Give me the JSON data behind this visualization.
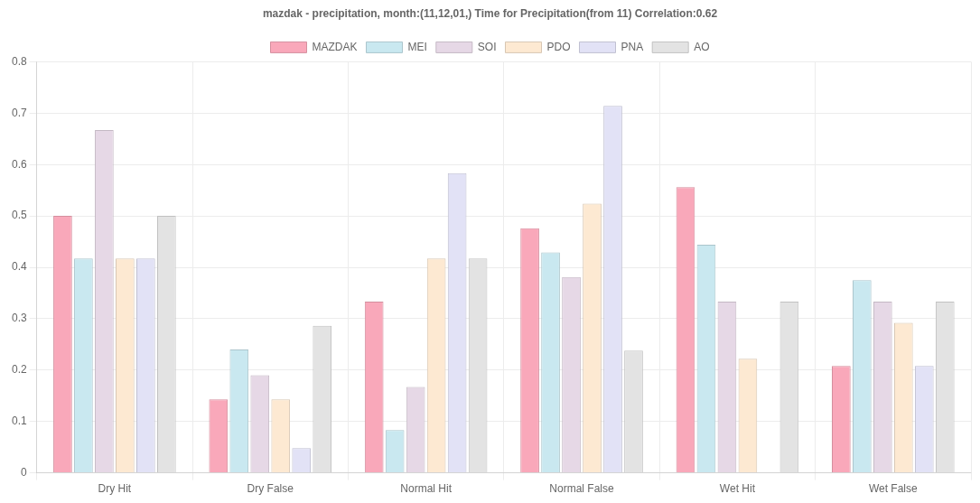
{
  "chart_data": {
    "type": "bar",
    "title": "mazdak - precipitation, month:(11,12,01,) Time for Precipitation(from 11) Correlation:0.62",
    "categories": [
      "Dry Hit",
      "Dry False",
      "Normal Hit",
      "Normal False",
      "Wet Hit",
      "Wet False"
    ],
    "series": [
      {
        "name": "MAZDAK",
        "color": "#f9a8ba",
        "values": [
          0.5,
          0.143,
          0.333,
          0.476,
          0.556,
          0.208
        ]
      },
      {
        "name": "MEI",
        "color": "#c9e8f0",
        "values": [
          0.417,
          0.24,
          0.083,
          0.429,
          0.444,
          0.375
        ]
      },
      {
        "name": "SOI",
        "color": "#e6d8e6",
        "values": [
          0.667,
          0.19,
          0.167,
          0.381,
          0.333,
          0.333
        ]
      },
      {
        "name": "PDO",
        "color": "#fde9d2",
        "values": [
          0.417,
          0.143,
          0.417,
          0.524,
          0.222,
          0.292
        ]
      },
      {
        "name": "PNA",
        "color": "#e2e2f6",
        "values": [
          0.417,
          0.048,
          0.583,
          0.714,
          0,
          0.208
        ]
      },
      {
        "name": "AO",
        "color": "#e3e3e3",
        "values": [
          0.5,
          0.286,
          0.417,
          0.238,
          0.333,
          0.333
        ]
      }
    ],
    "ylim": [
      0,
      0.8
    ],
    "yticks": [
      0,
      0.1,
      0.2,
      0.3,
      0.4,
      0.5,
      0.6,
      0.7,
      0.8
    ],
    "grid": true,
    "legend": "top"
  }
}
